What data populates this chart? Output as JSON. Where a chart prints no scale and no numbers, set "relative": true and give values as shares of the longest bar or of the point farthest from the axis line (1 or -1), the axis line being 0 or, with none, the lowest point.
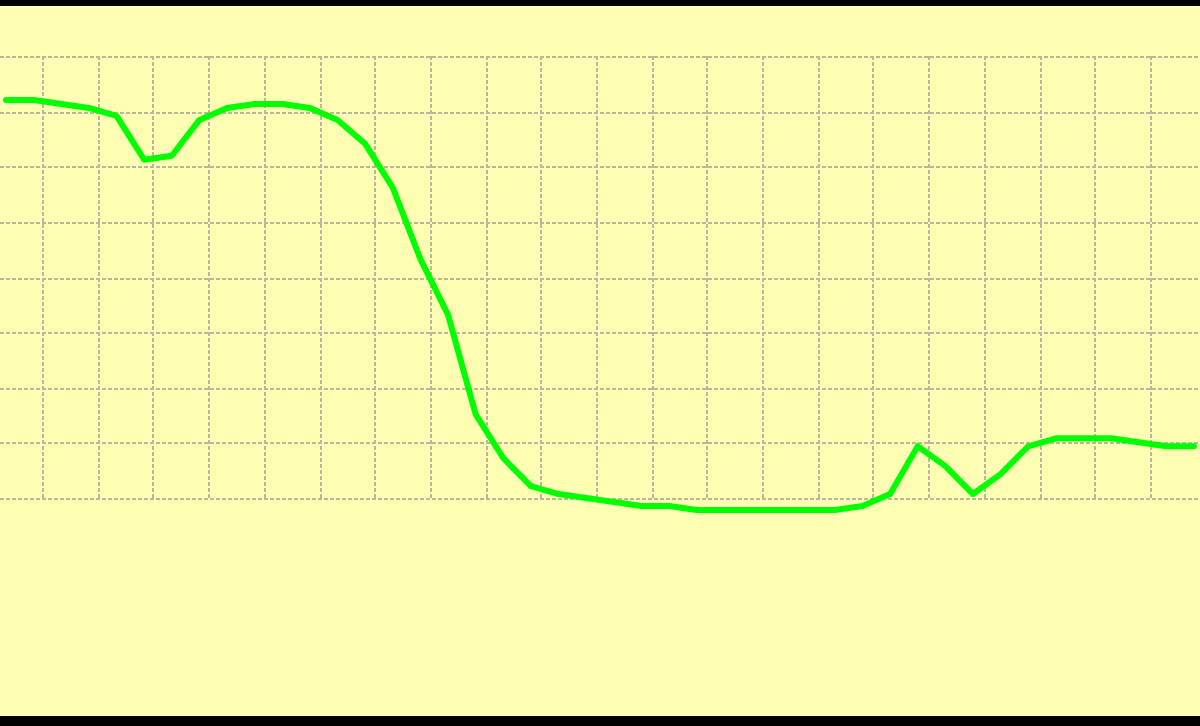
{
  "chart_data": {
    "type": "line",
    "relative": true,
    "grid": true,
    "tick_labels": false,
    "legend": false,
    "marker": "none",
    "line_style": "solid",
    "categories": [
      null,
      null,
      null,
      null,
      null,
      null,
      null,
      null,
      null,
      null,
      null,
      null,
      null,
      null,
      null,
      null,
      null,
      null,
      null,
      null,
      null,
      null,
      null,
      null,
      null,
      null,
      null,
      null,
      null,
      null,
      null,
      null,
      null,
      null,
      null,
      null,
      null,
      null,
      null,
      null,
      null,
      null,
      null,
      null
    ],
    "series": [
      {
        "color": "#00ff00",
        "values": [
          1,
          1,
          0.99,
          0.98,
          0.96,
          0.85,
          0.86,
          0.95,
          0.98,
          0.99,
          0.99,
          0.98,
          0.95,
          0.89,
          0.78,
          0.6,
          0.46,
          0.21,
          0.1,
          0.03,
          0.01,
          0,
          -0.01,
          -0.02,
          -0.02,
          -0.03,
          -0.03,
          -0.03,
          -0.03,
          -0.03,
          -0.03,
          -0.02,
          0.01,
          0.13,
          0.08,
          0.01,
          0.06,
          0.13,
          0.15,
          0.15,
          0.15,
          0.14,
          0.13,
          0.13
        ]
      }
    ]
  }
}
